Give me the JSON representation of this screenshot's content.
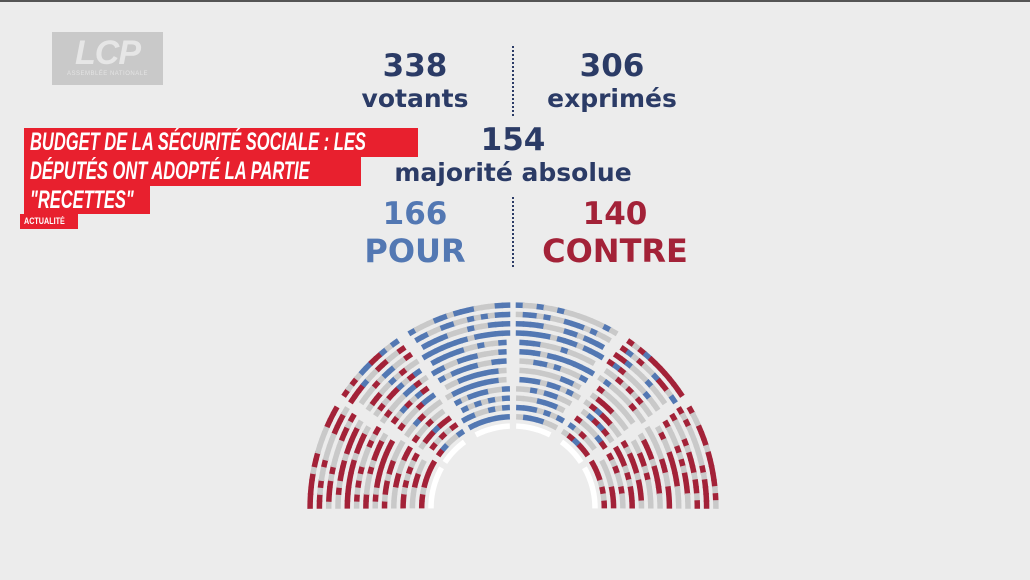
{
  "logo": {
    "name": "LCP",
    "subtitle": "ASSEMBLÉE NATIONALE"
  },
  "headline": {
    "lines": [
      "BUDGET DE LA SÉCURITÉ SOCIALE : LES",
      "DÉPUTÉS ONT ADOPTÉ LA PARTIE",
      "\"RECETTES\""
    ],
    "category": "ACTUALITÉ"
  },
  "vote": {
    "votants": {
      "value": "338",
      "label": "votants"
    },
    "exprimes": {
      "value": "306",
      "label": "exprimés"
    },
    "majorite": {
      "value": "154",
      "label": "majorité absolue"
    },
    "pour": {
      "value": "166",
      "label": "POUR"
    },
    "contre": {
      "value": "140",
      "label": "CONTRE"
    }
  },
  "colors": {
    "banner": "#e8202e",
    "navy": "#2b3b66",
    "pour": "#5378b3",
    "contre": "#a32238",
    "abstention": "#c9c9c9"
  }
}
